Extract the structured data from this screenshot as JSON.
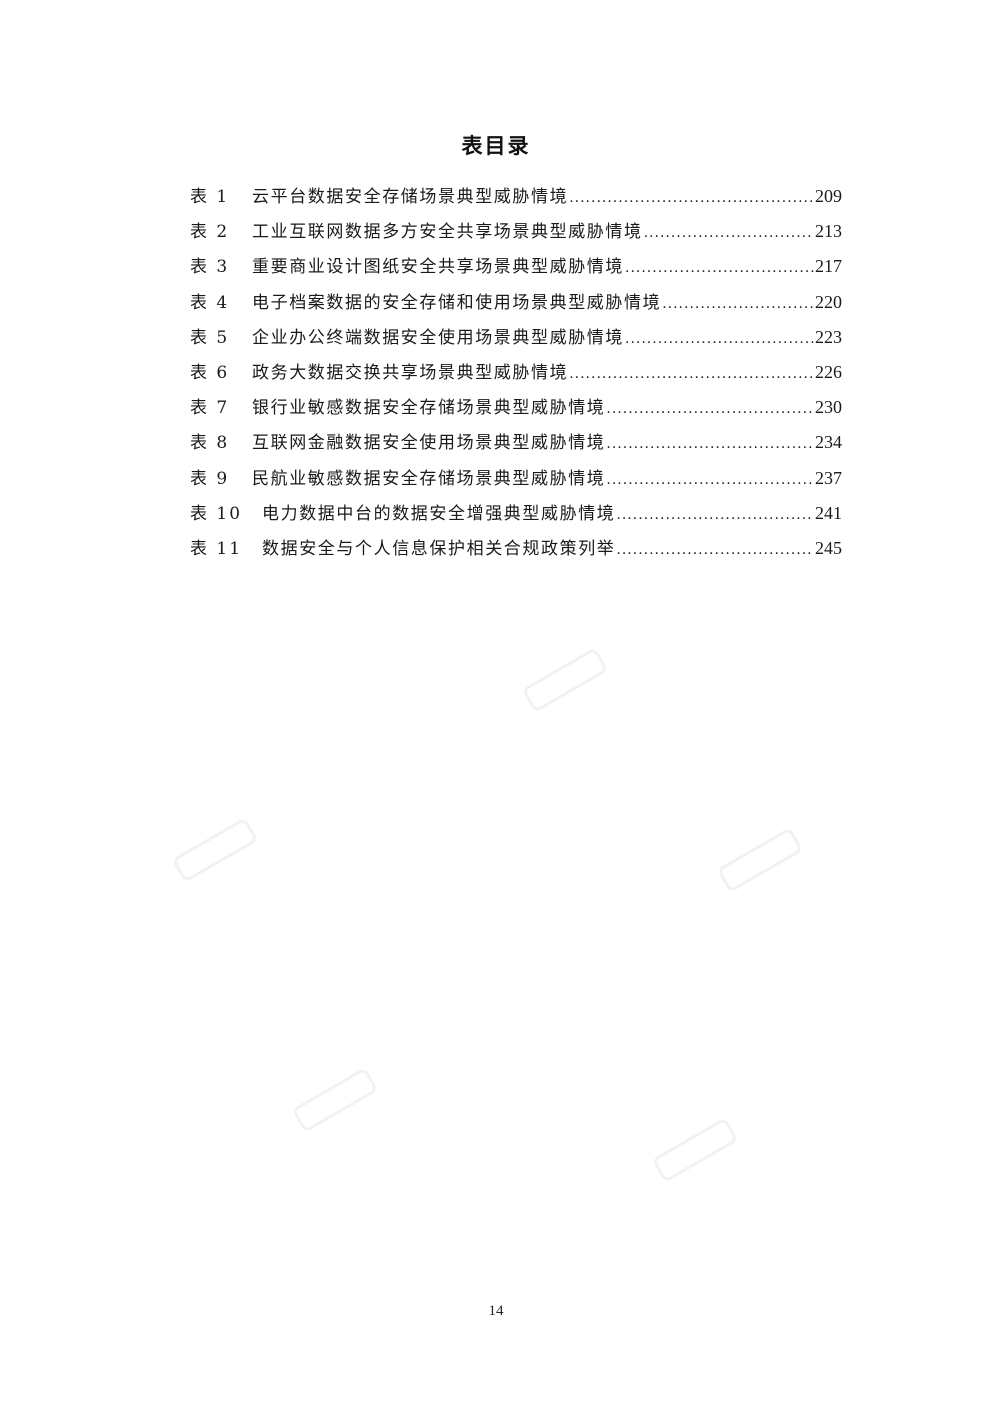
{
  "document": {
    "title": "表目录",
    "page_number": "14"
  },
  "toc": [
    {
      "label": "表 1",
      "text": "云平台数据安全存储场景典型威胁情境",
      "page": "209"
    },
    {
      "label": "表 2",
      "text": "工业互联网数据多方安全共享场景典型威胁情境",
      "page": "213"
    },
    {
      "label": "表 3",
      "text": "重要商业设计图纸安全共享场景典型威胁情境",
      "page": "217"
    },
    {
      "label": "表 4",
      "text": "电子档案数据的安全存储和使用场景典型威胁情境",
      "page": "220"
    },
    {
      "label": "表 5",
      "text": "企业办公终端数据安全使用场景典型威胁情境",
      "page": "223"
    },
    {
      "label": "表 6",
      "text": "政务大数据交换共享场景典型威胁情境",
      "page": "226"
    },
    {
      "label": "表 7",
      "text": "银行业敏感数据安全存储场景典型威胁情境",
      "page": "230"
    },
    {
      "label": "表 8",
      "text": "互联网金融数据安全使用场景典型威胁情境",
      "page": "234"
    },
    {
      "label": "表 9",
      "text": "民航业敏感数据安全存储场景典型威胁情境",
      "page": "237"
    },
    {
      "label": "表 10",
      "text": "电力数据中台的数据安全增强典型威胁情境",
      "page": "241"
    },
    {
      "label": "表 11",
      "text": "数据安全与个人信息保护相关合规政策列举",
      "page": "245"
    }
  ],
  "watermark": {
    "icon": "faint-logo-watermark",
    "color": "#9a9a9a"
  }
}
